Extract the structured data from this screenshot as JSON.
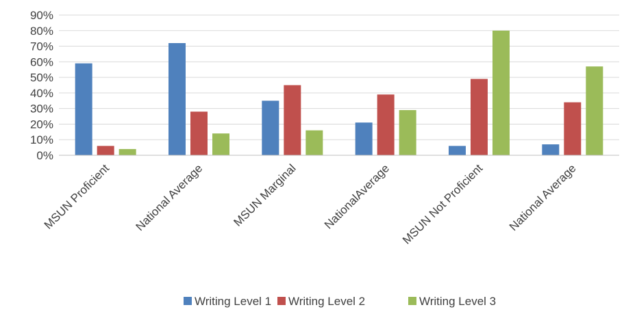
{
  "chart_data": {
    "type": "bar",
    "categories": [
      "MSUN Proficient",
      "National Average",
      "MSUN Marginal",
      "NationalAverage",
      "MSUN Not Proficient",
      "National Average"
    ],
    "series": [
      {
        "name": "Writing Level 1",
        "color": "#4F81BD",
        "values": [
          59,
          72,
          35,
          21,
          6,
          7
        ]
      },
      {
        "name": "Writing Level 2",
        "color": "#C0504D",
        "values": [
          6,
          28,
          45,
          39,
          49,
          34
        ]
      },
      {
        "name": "Writing Level 3",
        "color": "#9BBB59",
        "values": [
          4,
          14,
          16,
          29,
          80,
          57
        ]
      }
    ],
    "yticks": [
      "0%",
      "10%",
      "20%",
      "30%",
      "40%",
      "50%",
      "60%",
      "70%",
      "80%",
      "90%"
    ],
    "ylim": [
      0,
      90
    ],
    "grid": true,
    "legend": "bottom"
  }
}
